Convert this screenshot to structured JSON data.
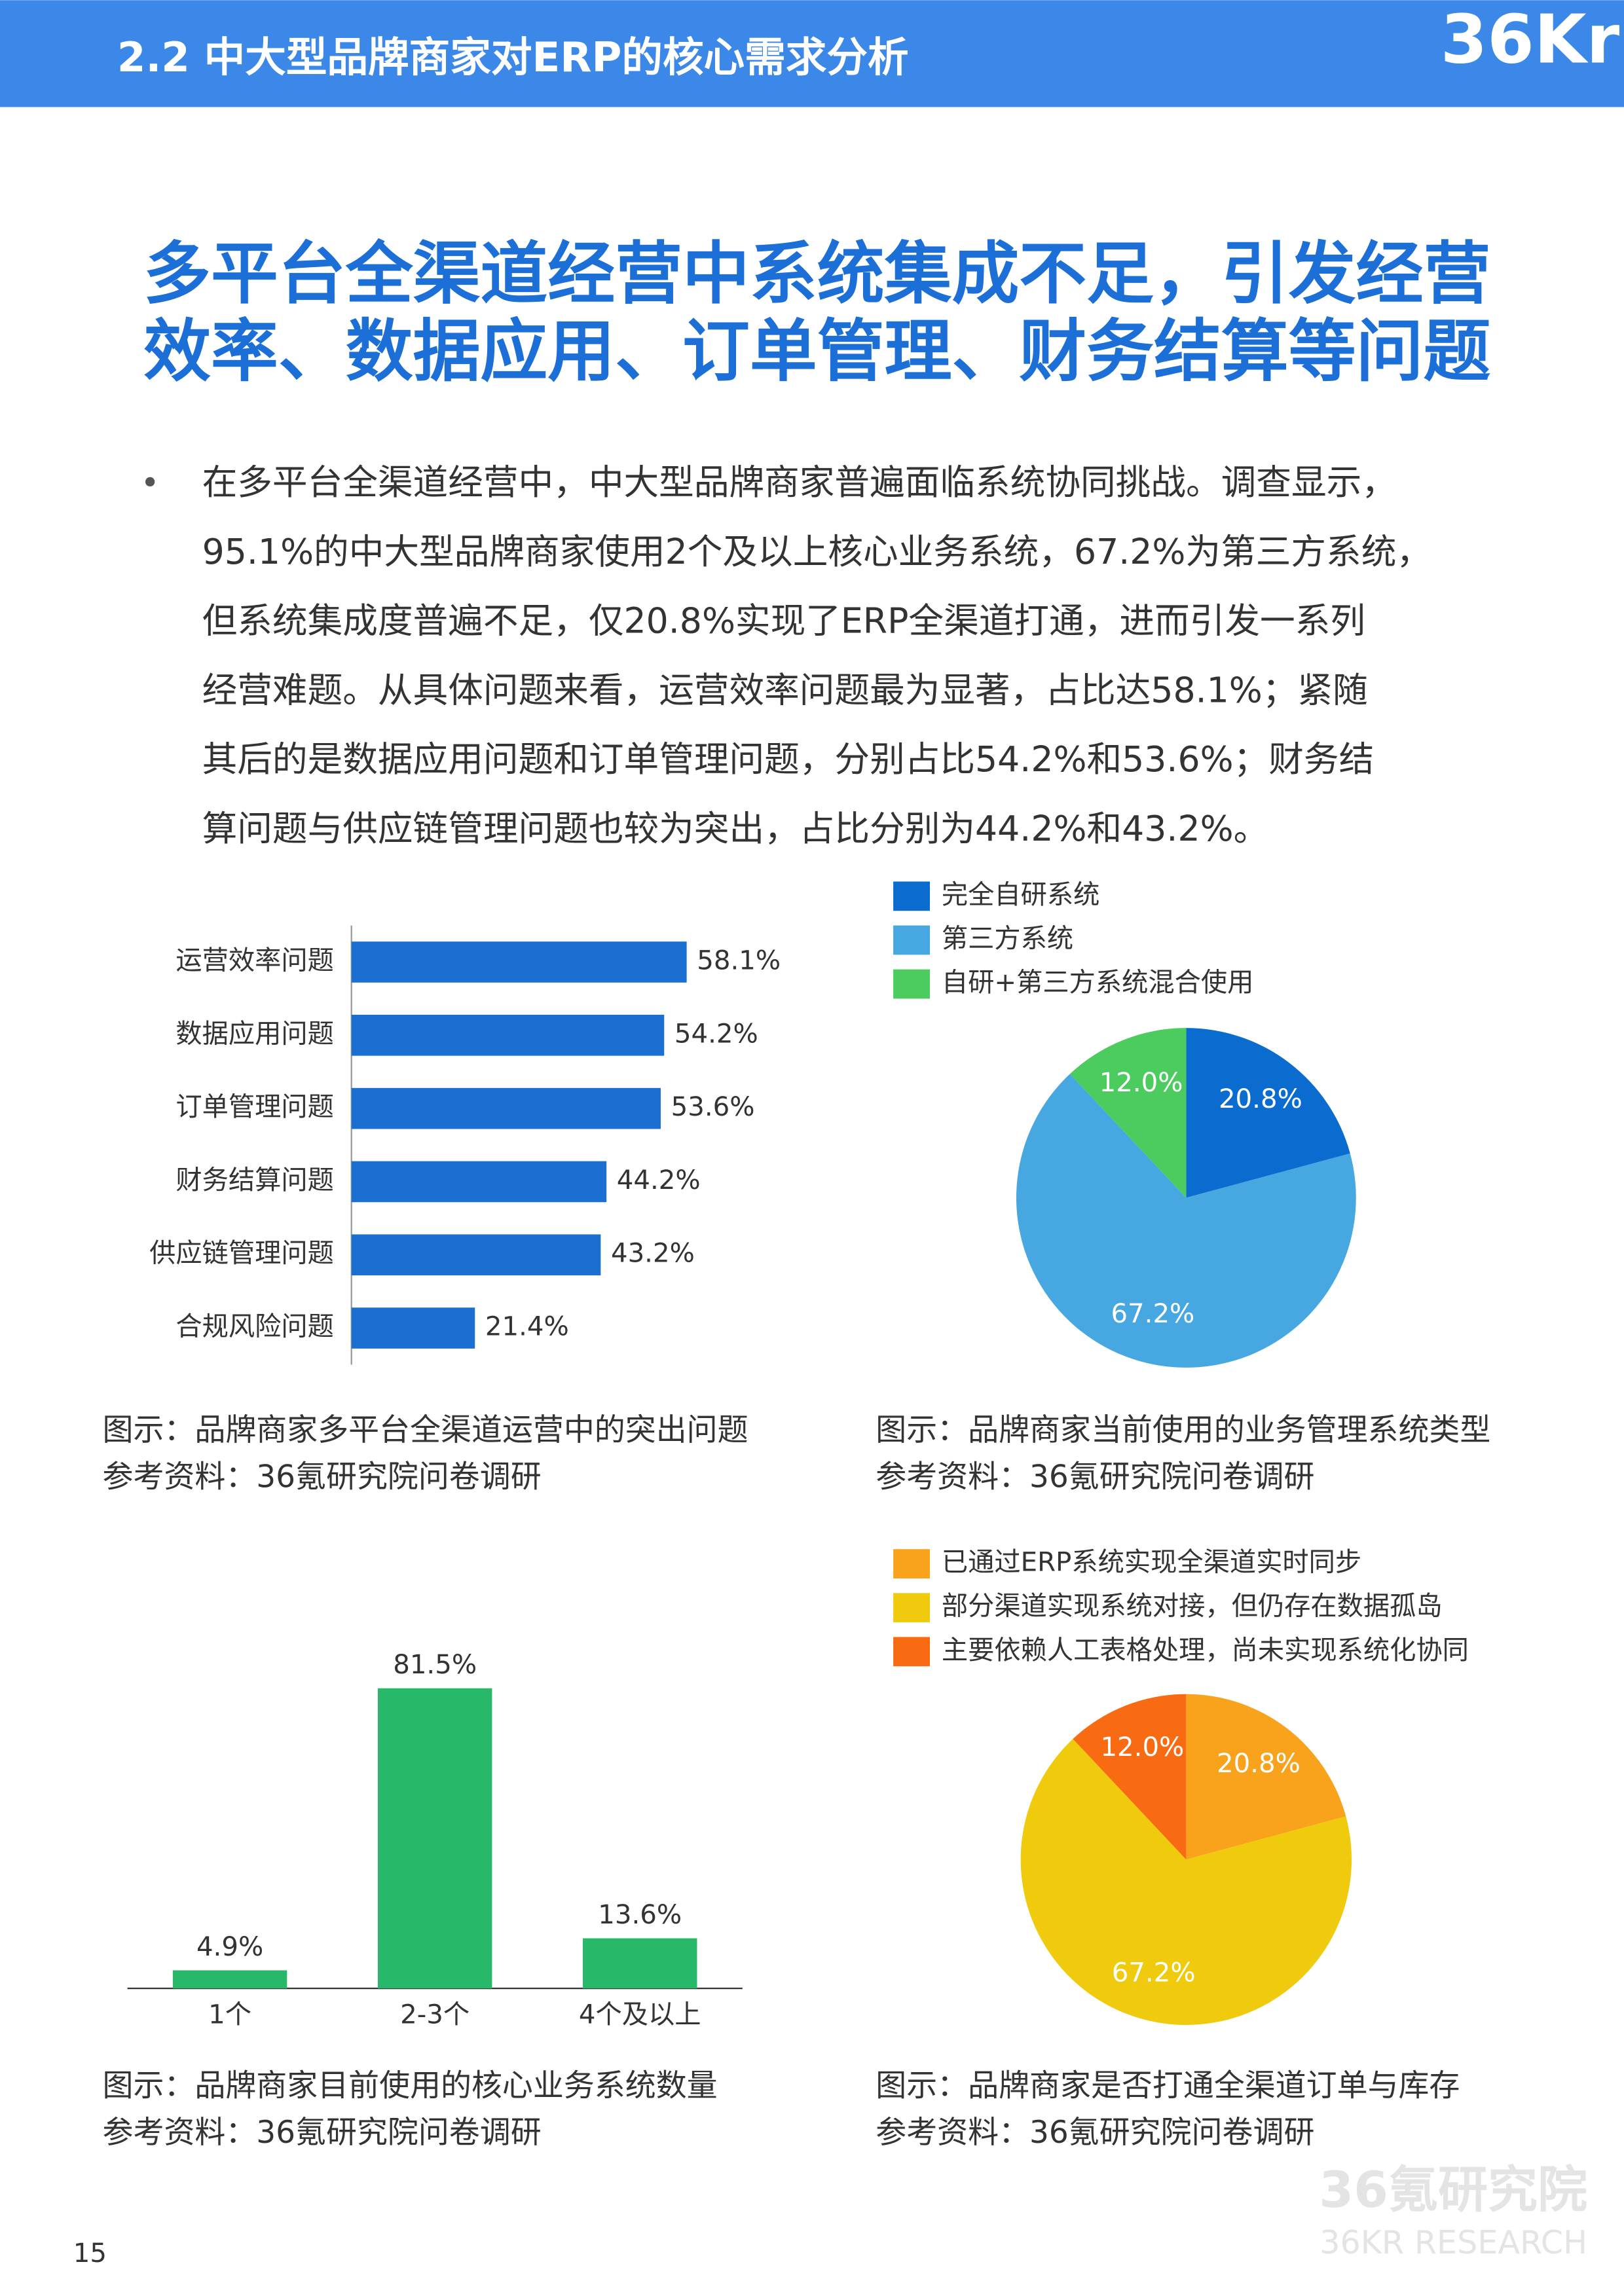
{
  "header": {
    "title": "2.2 中大型品牌商家对ERP的核心需求分析",
    "logo": "36Kr"
  },
  "headline": [
    "多平台全渠道经营中系统集成不足，引发经营",
    "效率、数据应用、订单管理、财务结算等问题"
  ],
  "body": {
    "bullet": "•",
    "lines": [
      "在多平台全渠道经营中，中大型品牌商家普遍面临系统协同挑战。调查显示，",
      "95.1%的中大型品牌商家使用2个及以上核心业务系统，67.2%为第三方系统，",
      "但系统集成度普遍不足，仅20.8%实现了ERP全渠道打通，进而引发一系列",
      "经营难题。从具体问题来看，运营效率问题最为显著，占比达58.1%；紧随",
      "其后的是数据应用问题和订单管理问题，分别占比54.2%和53.6%；财务结",
      "算问题与供应链管理问题也较为突出，占比分别为44.2%和43.2%。"
    ]
  },
  "chart_data": [
    {
      "type": "hbar",
      "categories": [
        "运营效率问题",
        "数据应用问题",
        "订单管理问题",
        "财务结算问题",
        "供应链管理问题",
        "合规风险问题"
      ],
      "values": [
        58.1,
        54.2,
        53.6,
        44.2,
        43.2,
        21.4
      ],
      "value_labels": [
        "58.1%",
        "54.2%",
        "53.6%",
        "44.2%",
        "43.2%",
        "21.4%"
      ],
      "color": "#1b6fd0",
      "caption": "图示：品牌商家多平台全渠道运营中的突出问题",
      "source": "参考资料：36氪研究院问卷调研"
    },
    {
      "type": "pie",
      "categories": [
        "完全自研系统",
        "第三方系统",
        "自研+第三方系统混合使用"
      ],
      "values": [
        20.8,
        67.2,
        12.0
      ],
      "value_labels": [
        "20.8%",
        "67.2%",
        "12.0%"
      ],
      "colors": [
        "#0b6ccf",
        "#47a7e0",
        "#4ccb5e"
      ],
      "caption": "图示：品牌商家当前使用的业务管理系统类型",
      "source": "参考资料：36氪研究院问卷调研"
    },
    {
      "type": "bar",
      "categories": [
        "1个",
        "2-3个",
        "4个及以上"
      ],
      "values": [
        4.9,
        81.5,
        13.6
      ],
      "value_labels": [
        "4.9%",
        "81.5%",
        "13.6%"
      ],
      "color": "#27b86a",
      "caption": "图示：品牌商家目前使用的核心业务系统数量",
      "source": "参考资料：36氪研究院问卷调研"
    },
    {
      "type": "pie",
      "categories": [
        "已通过ERP系统实现全渠道实时同步",
        "部分渠道实现系统对接，但仍存在数据孤岛",
        "主要依赖人工表格处理，尚未实现系统化协同"
      ],
      "values": [
        20.8,
        67.2,
        12.0
      ],
      "value_labels": [
        "20.8%",
        "67.2%",
        "12.0%"
      ],
      "colors": [
        "#f9a21b",
        "#f0cb0d",
        "#f86b12"
      ],
      "caption": "图示：品牌商家是否打通全渠道订单与库存",
      "source": "参考资料：36氪研究院问卷调研"
    }
  ],
  "footer": {
    "page": "15",
    "watermark": "36氪研究院",
    "watermark_en": "36KR RESEARCH"
  }
}
